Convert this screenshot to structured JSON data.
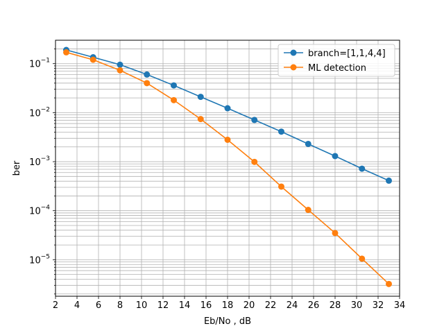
{
  "chart_data": {
    "type": "line",
    "title": "",
    "xlabel": "Eb/No , dB",
    "ylabel": "ber",
    "xlim": [
      2,
      34
    ],
    "ylim": [
      1.8e-06,
      0.3
    ],
    "yscale": "log",
    "grid": "both (major and minor)",
    "legend_position": "top-right",
    "x_ticks": [
      2,
      4,
      6,
      8,
      10,
      12,
      14,
      16,
      18,
      20,
      22,
      24,
      26,
      28,
      30,
      32,
      34
    ],
    "y_ticks": [
      {
        "value": 1e-05,
        "label": "10",
        "exp": "−5"
      },
      {
        "value": 0.0001,
        "label": "10",
        "exp": "−4"
      },
      {
        "value": 0.001,
        "label": "10",
        "exp": "−3"
      },
      {
        "value": 0.01,
        "label": "10",
        "exp": "−2"
      },
      {
        "value": 0.1,
        "label": "10",
        "exp": "−1"
      }
    ],
    "x": [
      3,
      5.5,
      8,
      10.5,
      13,
      15.5,
      18,
      20.5,
      23,
      25.5,
      28,
      30.5,
      33
    ],
    "series": [
      {
        "name": "branch=[1,1,4,4]",
        "color": "#1f77b4",
        "values": [
          0.19,
          0.135,
          0.095,
          0.06,
          0.036,
          0.021,
          0.0123,
          0.0071,
          0.0041,
          0.0023,
          0.0013,
          0.00072,
          0.00041
        ]
      },
      {
        "name": "ML detection",
        "color": "#ff7f0e",
        "values": [
          0.17,
          0.12,
          0.073,
          0.04,
          0.018,
          0.0074,
          0.0028,
          0.00099,
          0.00031,
          0.000104,
          3.5e-05,
          1.05e-05,
          3.2e-06
        ]
      }
    ]
  }
}
